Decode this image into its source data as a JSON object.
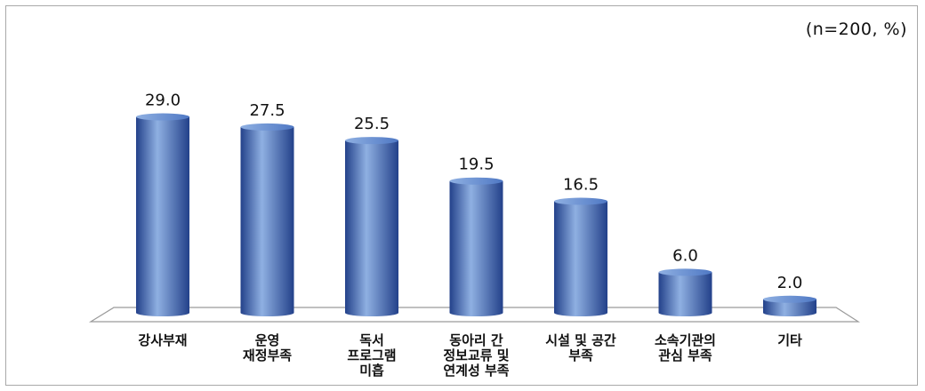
{
  "note": "(n=200, %)",
  "colors": {
    "bar_light": "#8fb0e2",
    "bar_mid": "#4f78c4",
    "bar_dark": "#23418a",
    "floor": "#ffffff",
    "floor_edge": "#9a9a9a"
  },
  "chart_data": {
    "type": "bar",
    "categories": [
      [
        "강사부재"
      ],
      [
        "운영",
        "재정부족"
      ],
      [
        "독서",
        "프로그램",
        "미흡"
      ],
      [
        "동아리 간",
        "정보교류 및",
        "연계성 부족"
      ],
      [
        "시설 및 공간",
        "부족"
      ],
      [
        "소속기관의",
        "관심 부족"
      ],
      [
        "기타"
      ]
    ],
    "values": [
      29.0,
      27.5,
      25.5,
      19.5,
      16.5,
      6.0,
      2.0
    ],
    "value_labels": [
      "29.0",
      "27.5",
      "25.5",
      "19.5",
      "16.5",
      "6.0",
      "2.0"
    ],
    "ylim": [
      0,
      32
    ],
    "grid": false,
    "legend": "none"
  }
}
